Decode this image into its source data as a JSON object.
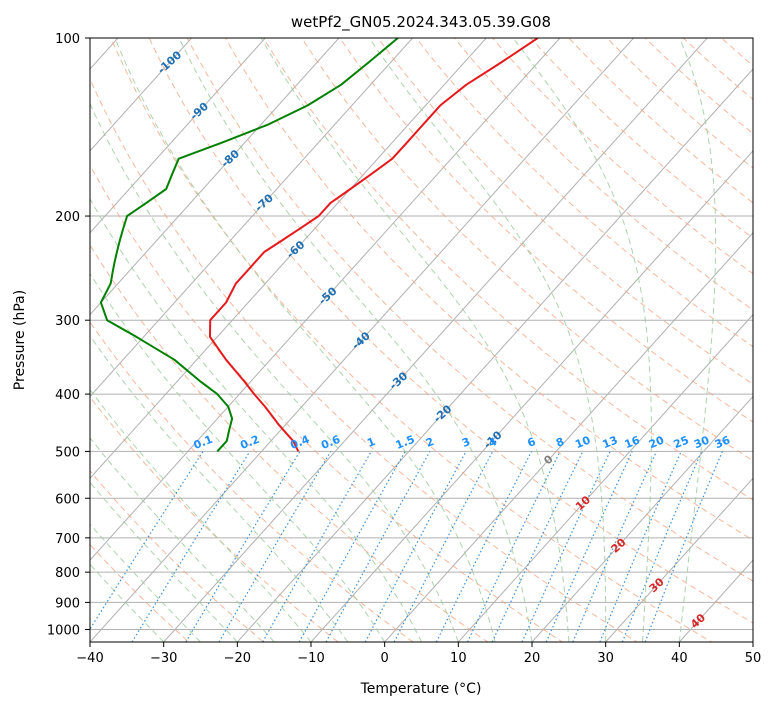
{
  "chart_data": {
    "type": "line",
    "title": "wetPf2_GN05.2024.343.05.39.G08",
    "xlabel": "Temperature (°C)",
    "ylabel": "Pressure (hPa)",
    "xlim": [
      -40,
      50
    ],
    "ylim": [
      1050,
      100
    ],
    "y_scale": "log",
    "x_ticks": [
      "−40",
      "−30",
      "−20",
      "−10",
      "0",
      "10",
      "20",
      "30",
      "40",
      "50"
    ],
    "x_tick_values": [
      -40,
      -30,
      -20,
      -10,
      0,
      10,
      20,
      30,
      40,
      50
    ],
    "y_ticks": [
      "100",
      "200",
      "300",
      "400",
      "500",
      "600",
      "700",
      "800",
      "900",
      "1000"
    ],
    "y_tick_values": [
      100,
      200,
      300,
      400,
      500,
      600,
      700,
      800,
      900,
      1000
    ],
    "grid": true,
    "colors": {
      "temperature": "#e41a1c",
      "dewpoint": "#008000",
      "isotherm": "#b0b0b0",
      "dry_adiabat": "#f4a582",
      "moist_adiabat": "#98c998",
      "mixing_ratio": "#3a8fd9",
      "isotherm_label": "#1f6fb4",
      "mixing_ratio_label": "#1e90ff",
      "warm_label": "#d62728",
      "zero_label": "#808080"
    },
    "series": [
      {
        "key": "temperature",
        "pressure": [
          100,
          110,
          120,
          130,
          140,
          150,
          160,
          170,
          180,
          190,
          200,
          210,
          220,
          230,
          240,
          250,
          260,
          280,
          300,
          320,
          350,
          380,
          400,
          420,
          450,
          480,
          500
        ],
        "temperature": [
          -53,
          -55,
          -57,
          -58,
          -58,
          -58,
          -58,
          -59,
          -60,
          -61,
          -61,
          -62,
          -63,
          -64,
          -64,
          -64,
          -64,
          -63,
          -63,
          -61,
          -56,
          -51,
          -48,
          -45,
          -41,
          -37,
          -35
        ]
      },
      {
        "key": "dewpoint",
        "pressure": [
          100,
          110,
          120,
          130,
          140,
          150,
          160,
          170,
          180,
          190,
          200,
          210,
          220,
          230,
          240,
          250,
          260,
          280,
          300,
          320,
          350,
          380,
          400,
          420,
          440,
          460,
          480,
          500
        ],
        "temperature": [
          -72,
          -73,
          -74,
          -76,
          -79,
          -83,
          -87,
          -86,
          -85,
          -86,
          -87,
          -86,
          -85,
          -84,
          -83,
          -82,
          -81,
          -80,
          -77,
          -71,
          -63,
          -57,
          -53,
          -50,
          -48,
          -47,
          -46,
          -46
        ]
      }
    ],
    "isotherm_labels": [
      {
        "text": "-100",
        "t": -100
      },
      {
        "text": "-90",
        "t": -90
      },
      {
        "text": "-80",
        "t": -80
      },
      {
        "text": "-70",
        "t": -70
      },
      {
        "text": "-60",
        "t": -60
      },
      {
        "text": "-50",
        "t": -50
      },
      {
        "text": "-40",
        "t": -40
      },
      {
        "text": "-30",
        "t": -30
      },
      {
        "text": "-20",
        "t": -20
      },
      {
        "text": "-10",
        "t": -10
      },
      {
        "text": "0",
        "t": 0
      },
      {
        "text": "10",
        "t": 10
      },
      {
        "text": "20",
        "t": 20
      },
      {
        "text": "30",
        "t": 30
      },
      {
        "text": "40",
        "t": 40
      }
    ],
    "mixing_ratio_labels": [
      {
        "text": "0.1",
        "g": 0.1
      },
      {
        "text": "0.2",
        "g": 0.2
      },
      {
        "text": "0.4",
        "g": 0.4
      },
      {
        "text": "0.6",
        "g": 0.6
      },
      {
        "text": "1",
        "g": 1
      },
      {
        "text": "1.5",
        "g": 1.5
      },
      {
        "text": "2",
        "g": 2
      },
      {
        "text": "3",
        "g": 3
      },
      {
        "text": "4",
        "g": 4
      },
      {
        "text": "6",
        "g": 6
      },
      {
        "text": "8",
        "g": 8
      },
      {
        "text": "10",
        "g": 10
      },
      {
        "text": "13",
        "g": 13
      },
      {
        "text": "16",
        "g": 16
      },
      {
        "text": "20",
        "g": 20
      },
      {
        "text": "25",
        "g": 25
      },
      {
        "text": "30",
        "g": 30
      },
      {
        "text": "36",
        "g": 36
      }
    ]
  }
}
